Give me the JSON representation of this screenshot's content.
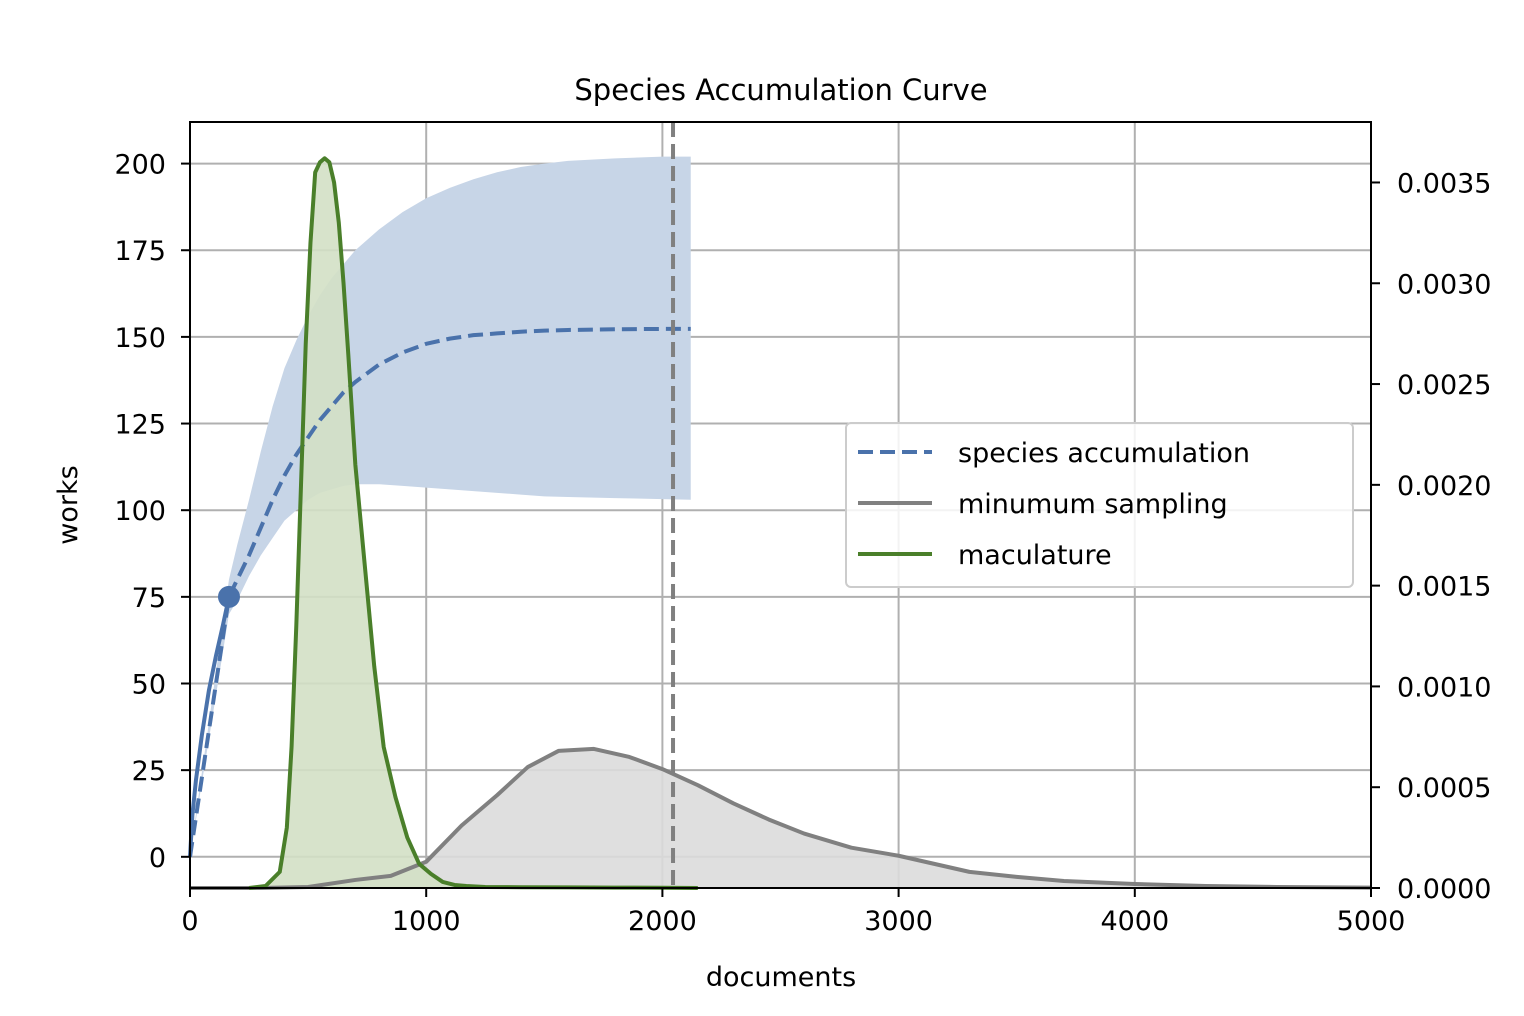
{
  "chart_data": {
    "type": "line",
    "title": "Species Accumulation Curve",
    "xlabel": "documents",
    "ylabel": "works",
    "xlim": [
      0,
      5000
    ],
    "ylim": [
      -9,
      212
    ],
    "y2lim": [
      0,
      0.0038
    ],
    "grid": true,
    "legend_position": "center-right",
    "x_ticks": [
      "0",
      "1000",
      "2000",
      "3000",
      "4000",
      "5000"
    ],
    "y_ticks": [
      "0",
      "25",
      "50",
      "75",
      "100",
      "125",
      "150",
      "175",
      "200"
    ],
    "y2_ticks": [
      "0.0000",
      "0.0005",
      "0.0010",
      "0.0015",
      "0.0020",
      "0.0025",
      "0.0030",
      "0.0035"
    ],
    "series": [
      {
        "name": "species accumulation",
        "axis": "left",
        "style": "dashed",
        "color": "#4a72ab",
        "x": [
          0,
          165,
          200,
          250,
          300,
          350,
          400,
          450,
          500,
          550,
          600,
          650,
          700,
          800,
          900,
          1000,
          1100,
          1200,
          1300,
          1400,
          1500,
          1600,
          1800,
          2000,
          2120
        ],
        "y": [
          0,
          75,
          80,
          87,
          95,
          103,
          110,
          116,
          121,
          126,
          130,
          134,
          137,
          142,
          145.5,
          148,
          149.5,
          150.5,
          151,
          151.5,
          151.8,
          152,
          152.2,
          152.3,
          152.3
        ],
        "band_upper": [
          0,
          80,
          90,
          103,
          117,
          130,
          141,
          149,
          156,
          162,
          167,
          171,
          175,
          181,
          186,
          190,
          193,
          195.5,
          197.5,
          199,
          200,
          200.8,
          201.5,
          202,
          202
        ],
        "band_lower": [
          0,
          70,
          74,
          81,
          87,
          92,
          97,
          100,
          103,
          105,
          106,
          107,
          107.5,
          107.5,
          107,
          106.5,
          106,
          105.5,
          105,
          104.5,
          104,
          103.8,
          103.5,
          103.2,
          103
        ]
      },
      {
        "name": "",
        "axis": "left",
        "style": "solid",
        "color": "#4a72ab",
        "x": [
          0,
          10,
          25,
          50,
          80,
          110,
          140,
          165
        ],
        "y": [
          0,
          12,
          22,
          35,
          48,
          58,
          67,
          75
        ]
      },
      {
        "name": "minumum sampling",
        "axis": "right",
        "style": "solid",
        "color": "#808080",
        "x": [
          0,
          300,
          500,
          700,
          850,
          1000,
          1150,
          1300,
          1430,
          1560,
          1710,
          1860,
          2000,
          2150,
          2300,
          2450,
          2600,
          2800,
          3000,
          3300,
          3500,
          3700,
          4000,
          4300,
          4600,
          5000
        ],
        "y": [
          0,
          0,
          5e-06,
          4e-05,
          6e-05,
          0.00013,
          0.00031,
          0.00046,
          0.0006,
          0.00068,
          0.00069,
          0.00065,
          0.00059,
          0.00051,
          0.00042,
          0.00034,
          0.00027,
          0.0002,
          0.00016,
          8e-05,
          5.5e-05,
          3.5e-05,
          2e-05,
          1e-05,
          5e-06,
          2e-06
        ]
      },
      {
        "name": "maculature",
        "axis": "right",
        "style": "solid",
        "color": "#4a7f2a",
        "x": [
          250,
          320,
          380,
          410,
          430,
          450,
          470,
          490,
          510,
          530,
          550,
          570,
          590,
          610,
          630,
          650,
          670,
          700,
          740,
          780,
          820,
          870,
          920,
          970,
          1020,
          1070,
          1120,
          1170,
          1250,
          1400,
          1600,
          1800,
          2000,
          2150
        ],
        "y": [
          0,
          1e-05,
          8e-05,
          0.0003,
          0.0007,
          0.0013,
          0.002,
          0.0027,
          0.0032,
          0.00355,
          0.0036,
          0.00362,
          0.0036,
          0.0035,
          0.0033,
          0.003,
          0.00265,
          0.0021,
          0.0016,
          0.0011,
          0.0007,
          0.00045,
          0.00025,
          0.00012,
          7e-05,
          3e-05,
          1.5e-05,
          1e-05,
          5e-06,
          4e-06,
          3e-06,
          2e-06,
          1e-06,
          0
        ]
      }
    ],
    "annotations": [
      {
        "type": "point",
        "x": 165,
        "y": 75,
        "color": "#4a72ab"
      },
      {
        "type": "vline",
        "x": 2045,
        "style": "dashed",
        "color": "#808080"
      }
    ]
  }
}
